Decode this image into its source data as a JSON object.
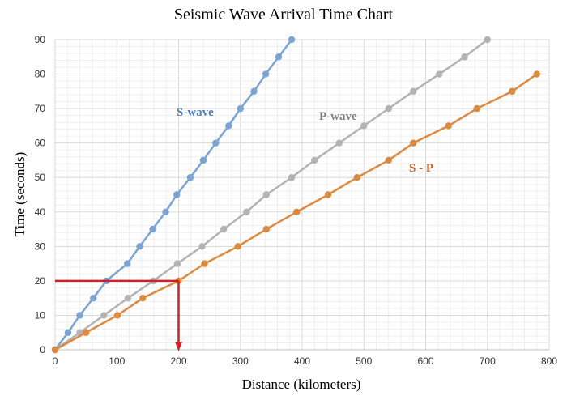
{
  "chart_data": {
    "type": "line",
    "title": "Seismic Wave Arrival Time Chart",
    "xlabel": "Distance (kilometers)",
    "ylabel": "Time (seconds)",
    "xlim": [
      0,
      800
    ],
    "ylim": [
      0,
      90
    ],
    "x_ticks": [
      0,
      100,
      200,
      300,
      400,
      500,
      600,
      700,
      800
    ],
    "y_ticks": [
      0,
      10,
      20,
      30,
      40,
      50,
      60,
      70,
      80,
      90
    ],
    "grid": true,
    "series": [
      {
        "name": "S-wave",
        "color": "#7aa3d6",
        "label_color": "#4f7fc1",
        "x": [
          0,
          21,
          40,
          62,
          83,
          117,
          137,
          158,
          179,
          197,
          219,
          240,
          260,
          281,
          300,
          322,
          341,
          362,
          383
        ],
        "y": [
          0,
          5,
          10,
          15,
          20,
          25,
          30,
          35,
          40,
          45,
          50,
          55,
          60,
          65,
          70,
          75,
          80,
          85,
          90
        ]
      },
      {
        "name": "P-wave",
        "color": "#b3b3b3",
        "label_color": "#808080",
        "x": [
          0,
          40,
          79,
          118,
          159,
          198,
          238,
          273,
          310,
          342,
          383,
          420,
          460,
          500,
          540,
          580,
          622,
          663,
          700
        ],
        "y": [
          0,
          5,
          10,
          15,
          20,
          25,
          30,
          35,
          40,
          45,
          50,
          55,
          60,
          65,
          70,
          75,
          80,
          85,
          90
        ]
      },
      {
        "name": "S - P",
        "color": "#dd8a3e",
        "label_color": "#c2662c",
        "x": [
          0,
          50,
          101,
          142,
          200,
          242,
          296,
          342,
          391,
          442,
          489,
          540,
          580,
          637,
          683,
          740,
          780
        ],
        "y": [
          0,
          5,
          10,
          15,
          20,
          25,
          30,
          35,
          40,
          45,
          50,
          55,
          60,
          65,
          70,
          75,
          80
        ]
      }
    ],
    "annotation": {
      "color": "#cc2222",
      "distance": 200,
      "time": 20
    }
  }
}
